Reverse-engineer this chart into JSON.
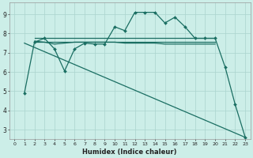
{
  "xlabel": "Humidex (Indice chaleur)",
  "bg_color": "#cceee8",
  "grid_color": "#aad4ce",
  "line_color": "#1a6e62",
  "xlim": [
    -0.5,
    23.5
  ],
  "ylim": [
    2.5,
    9.6
  ],
  "xticks": [
    0,
    1,
    2,
    3,
    4,
    5,
    6,
    7,
    8,
    9,
    10,
    11,
    12,
    13,
    14,
    15,
    16,
    17,
    18,
    19,
    20,
    21,
    22,
    23
  ],
  "yticks": [
    3,
    4,
    5,
    6,
    7,
    8,
    9
  ],
  "line_main": {
    "x": [
      1,
      2,
      3,
      4,
      5,
      6,
      7,
      8,
      9,
      10,
      11,
      12,
      13,
      14,
      15,
      16,
      17,
      18,
      19,
      20,
      21,
      22,
      23
    ],
    "y": [
      4.9,
      7.55,
      7.75,
      7.2,
      6.05,
      7.2,
      7.5,
      7.45,
      7.45,
      8.35,
      8.15,
      9.1,
      9.1,
      9.1,
      8.55,
      8.85,
      8.35,
      7.75,
      7.75,
      7.75,
      6.25,
      4.3,
      2.6
    ]
  },
  "line_flat1": {
    "x": [
      2,
      3,
      4,
      5,
      6,
      7,
      8,
      9,
      10,
      11,
      12,
      13,
      14,
      15,
      16,
      17,
      18,
      19,
      20
    ],
    "y": [
      7.75,
      7.75,
      7.75,
      7.75,
      7.75,
      7.75,
      7.75,
      7.75,
      7.75,
      7.75,
      7.75,
      7.75,
      7.75,
      7.75,
      7.75,
      7.75,
      7.75,
      7.75,
      7.75
    ]
  },
  "line_flat2": {
    "x": [
      2,
      3,
      4,
      5,
      6,
      7,
      8,
      9,
      10,
      11,
      12,
      13,
      14,
      15,
      16,
      17,
      18,
      19,
      20
    ],
    "y": [
      7.6,
      7.55,
      7.45,
      7.5,
      7.55,
      7.55,
      7.55,
      7.55,
      7.55,
      7.5,
      7.5,
      7.5,
      7.5,
      7.45,
      7.45,
      7.45,
      7.45,
      7.45,
      7.45
    ]
  },
  "line_flat3": {
    "x": [
      2,
      3,
      4,
      5,
      6,
      7,
      8,
      9,
      10,
      11,
      12,
      13,
      14,
      15,
      16,
      17,
      18,
      19,
      20
    ],
    "y": [
      7.55,
      7.55,
      7.55,
      7.55,
      7.55,
      7.55,
      7.55,
      7.55,
      7.55,
      7.55,
      7.55,
      7.55,
      7.55,
      7.55,
      7.55,
      7.55,
      7.55,
      7.55,
      7.55
    ]
  },
  "line_diagonal": {
    "x": [
      1,
      23
    ],
    "y": [
      7.5,
      2.6
    ]
  }
}
